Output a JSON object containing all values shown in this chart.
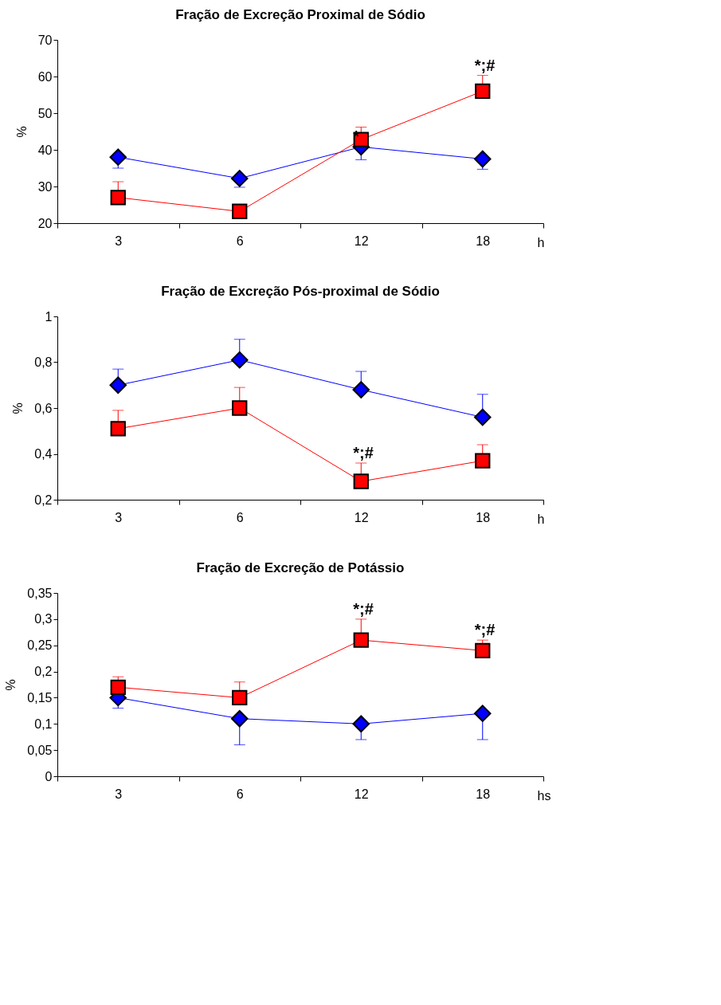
{
  "chart_data": [
    {
      "type": "line",
      "title": "Fração de Excreção Proximal de Sódio",
      "xlabel": "h",
      "ylabel": "%",
      "categories": [
        "3",
        "6",
        "12",
        "18"
      ],
      "ylim": [
        20,
        70
      ],
      "yticks": [
        20,
        30,
        40,
        50,
        60,
        70
      ],
      "grid": false,
      "line_style": "solid",
      "series": [
        {
          "color": "#0000ff",
          "marker": "diamond",
          "values": [
            38,
            32.2,
            40.8,
            37.5
          ],
          "errors": [
            [
              35,
              38
            ],
            [
              29.8,
              32.2
            ],
            [
              37.3,
              40.8
            ],
            [
              34.7,
              37.5
            ]
          ]
        },
        {
          "color": "#ff0000",
          "marker": "square",
          "values": [
            27,
            23.2,
            42.8,
            56
          ],
          "errors": [
            [
              27,
              31.3
            ],
            [
              23.2,
              24.8
            ],
            [
              42.8,
              46.2
            ],
            [
              56,
              60.3
            ]
          ]
        }
      ],
      "annotations": [
        {
          "text": "*;#",
          "x": "18",
          "y": 60.3
        },
        {
          "text": "*",
          "x": "12",
          "y": 40.8
        }
      ]
    },
    {
      "type": "line",
      "title": "Fração de Excreção Pós-proximal de Sódio",
      "xlabel": "h",
      "ylabel": "%",
      "categories": [
        "3",
        "6",
        "12",
        "18"
      ],
      "ylim": [
        0.2,
        1
      ],
      "yticks": [
        {
          "value": 0.2,
          "label": "0,2"
        },
        {
          "value": 0.4,
          "label": "0,4"
        },
        {
          "value": 0.6,
          "label": "0,6"
        },
        {
          "value": 0.8,
          "label": "0,8"
        },
        {
          "value": 1,
          "label": "1"
        }
      ],
      "grid": false,
      "line_style": "solid",
      "series": [
        {
          "color": "#0000ff",
          "marker": "diamond",
          "values": [
            0.7,
            0.81,
            0.68,
            0.56
          ],
          "errors": [
            [
              0.7,
              0.77
            ],
            [
              0.81,
              0.9
            ],
            [
              0.68,
              0.76
            ],
            [
              0.56,
              0.66
            ]
          ]
        },
        {
          "color": "#ff0000",
          "marker": "square",
          "values": [
            0.51,
            0.6,
            0.28,
            0.37
          ],
          "errors": [
            [
              0.51,
              0.59
            ],
            [
              0.6,
              0.69
            ],
            [
              0.28,
              0.36
            ],
            [
              0.37,
              0.44
            ]
          ]
        }
      ],
      "annotations": [
        {
          "text": "*;#",
          "x": "12",
          "y": 0.36
        }
      ]
    },
    {
      "type": "line",
      "title": "Fração de Excreção de Potássio",
      "xlabel": "hs",
      "ylabel": "%",
      "categories": [
        "3",
        "6",
        "12",
        "18"
      ],
      "ylim": [
        0,
        0.35
      ],
      "yticks": [
        {
          "value": 0,
          "label": "0"
        },
        {
          "value": 0.05,
          "label": "0,05"
        },
        {
          "value": 0.1,
          "label": "0,1"
        },
        {
          "value": 0.15,
          "label": "0,15"
        },
        {
          "value": 0.2,
          "label": "0,2"
        },
        {
          "value": 0.25,
          "label": "0,25"
        },
        {
          "value": 0.3,
          "label": "0,3"
        },
        {
          "value": 0.35,
          "label": "0,35"
        }
      ],
      "grid": false,
      "line_style": "solid",
      "series": [
        {
          "color": "#0000ff",
          "marker": "diamond",
          "values": [
            0.15,
            0.11,
            0.1,
            0.12
          ],
          "errors": [
            [
              0.13,
              0.15
            ],
            [
              0.06,
              0.11
            ],
            [
              0.07,
              0.1
            ],
            [
              0.07,
              0.12
            ]
          ]
        },
        {
          "color": "#ff0000",
          "marker": "square",
          "values": [
            0.17,
            0.15,
            0.26,
            0.24
          ],
          "errors": [
            [
              0.17,
              0.19
            ],
            [
              0.15,
              0.18
            ],
            [
              0.26,
              0.3
            ],
            [
              0.24,
              0.26
            ]
          ]
        }
      ],
      "annotations": [
        {
          "text": "*;#",
          "x": "12",
          "y": 0.3
        },
        {
          "text": "*;#",
          "x": "18",
          "y": 0.26
        }
      ]
    }
  ]
}
